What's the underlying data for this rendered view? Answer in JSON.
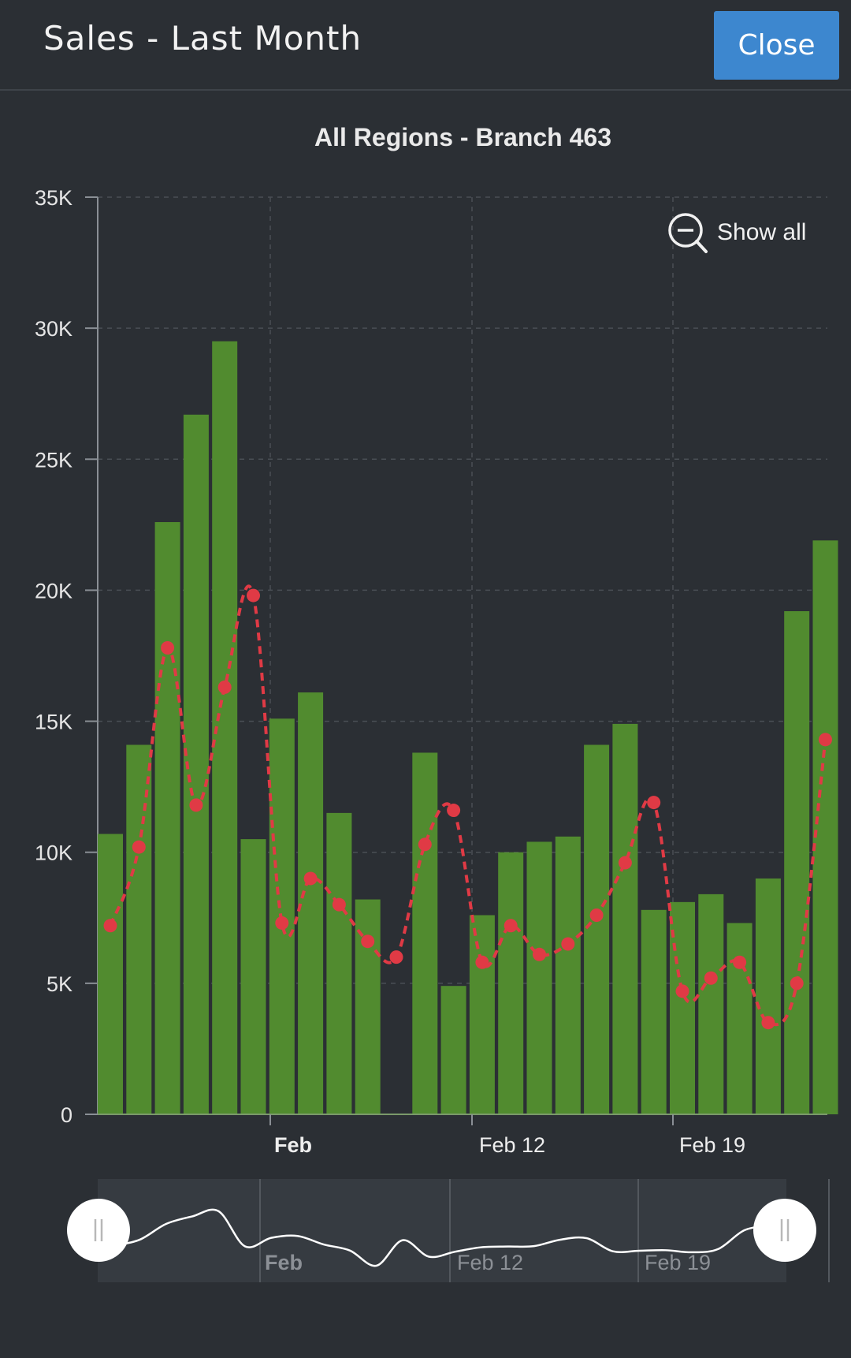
{
  "header": {
    "title": "Sales - Last Month",
    "close_label": "Close"
  },
  "toolbar": {
    "show_all_label": "Show all",
    "show_all_icon": "zoom-out-icon"
  },
  "colors": {
    "bar": "#518b2f",
    "line": "#e03a45",
    "grid": "#4a4f55",
    "axis": "#8a8f95",
    "navigator_line": "#ffffff"
  },
  "chart_data": {
    "type": "bar",
    "title": "All Regions - Branch 463",
    "ylim": [
      0,
      35000
    ],
    "y_ticks": [
      0,
      5000,
      10000,
      15000,
      20000,
      25000,
      30000,
      35000
    ],
    "y_tick_labels": [
      "0",
      "5K",
      "10K",
      "15K",
      "20K",
      "25K",
      "30K",
      "35K"
    ],
    "x_tick_labels": [
      "Feb",
      "Feb 12",
      "Feb 19"
    ],
    "grid": true,
    "series": [
      {
        "type": "bar",
        "values": [
          10700,
          14100,
          22600,
          26700,
          29500,
          10500,
          15100,
          16100,
          11500,
          8200,
          0,
          13800,
          4900,
          7600,
          10000,
          10400,
          10600,
          14100,
          14900,
          7800,
          8100,
          8400,
          7300,
          9000,
          19200,
          21900
        ]
      },
      {
        "type": "line",
        "style": "dashed",
        "values": [
          7200,
          10200,
          17800,
          11800,
          16300,
          19800,
          7300,
          9000,
          8000,
          6600,
          6000,
          10300,
          11600,
          5800,
          7200,
          6100,
          6500,
          7600,
          9600,
          11900,
          4700,
          5200,
          5800,
          3500,
          5000,
          14300
        ]
      }
    ],
    "navigator": {
      "x_tick_labels": [
        "Feb",
        "Feb 12",
        "Feb 19"
      ]
    }
  }
}
